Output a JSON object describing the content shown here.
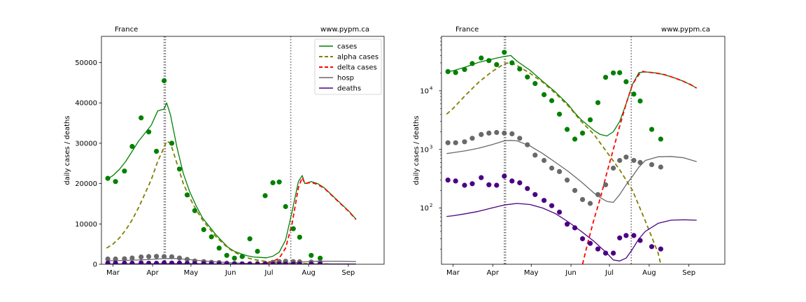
{
  "chart_data": [
    {
      "type": "line",
      "scale": "linear",
      "region": "France",
      "website": "www.pypm.ca",
      "ylabel": "daily cases / deaths",
      "ylim": [
        0,
        56500
      ],
      "xlim": [
        -9,
        212
      ],
      "y_ticks": [
        0,
        10000,
        20000,
        30000,
        40000,
        50000
      ],
      "y_tick_labels": [
        "0",
        "10000",
        "20000",
        "30000",
        "40000",
        "50000"
      ],
      "x_ticks": [
        {
          "day": 0,
          "label": "Mar"
        },
        {
          "day": 31,
          "label": "Apr"
        },
        {
          "day": 61,
          "label": "May"
        },
        {
          "day": 92,
          "label": "Jun"
        },
        {
          "day": 122,
          "label": "Jul"
        },
        {
          "day": 153,
          "label": "Aug"
        },
        {
          "day": 184,
          "label": "Sep"
        }
      ],
      "vlines": [
        40,
        41,
        139
      ],
      "legend": {
        "placement": "top-right",
        "entries": [
          {
            "label": "cases",
            "color": "#008000",
            "style": "solid"
          },
          {
            "label": "alpha cases",
            "color": "#808000",
            "style": "dashed"
          },
          {
            "label": "delta cases",
            "color": "#ff0000",
            "style": "dashed"
          },
          {
            "label": "hosp",
            "color": "#696969",
            "style": "solid"
          },
          {
            "label": "deaths",
            "color": "#4b0082",
            "style": "solid"
          }
        ]
      },
      "series": [
        {
          "key": "cases",
          "color": "#008000",
          "style": "solid",
          "x": [
            -5,
            0,
            5,
            10,
            15,
            20,
            25,
            30,
            35,
            40,
            42,
            45,
            50,
            55,
            60,
            65,
            70,
            75,
            80,
            85,
            90,
            95,
            100,
            105,
            110,
            115,
            120,
            125,
            130,
            135,
            140,
            145,
            148,
            150,
            155,
            160,
            165,
            170,
            175,
            180,
            185,
            190
          ],
          "y": [
            21000,
            22000,
            23500,
            25500,
            28000,
            30500,
            32500,
            34500,
            38000,
            38500,
            40000,
            37000,
            29000,
            22500,
            18000,
            14500,
            11500,
            9500,
            7500,
            5800,
            4200,
            3200,
            2600,
            2100,
            1800,
            1700,
            1600,
            2000,
            3000,
            6000,
            13000,
            20500,
            22000,
            20000,
            20500,
            20000,
            19000,
            17500,
            16000,
            14500,
            13000,
            11200
          ]
        },
        {
          "key": "alpha cases",
          "color": "#808000",
          "style": "dashed",
          "x": [
            -5,
            0,
            5,
            10,
            15,
            20,
            25,
            30,
            35,
            40,
            42,
            45,
            50,
            55,
            60,
            65,
            70,
            75,
            80,
            85,
            90,
            95,
            100,
            105,
            110,
            115,
            120,
            125,
            130,
            135,
            140,
            150,
            160,
            170
          ],
          "y": [
            4000,
            5000,
            6500,
            8500,
            11000,
            14000,
            17500,
            21000,
            25500,
            29000,
            30500,
            30000,
            25000,
            20000,
            16500,
            13500,
            11000,
            9000,
            7000,
            5500,
            4000,
            3000,
            2200,
            1600,
            1200,
            900,
            700,
            550,
            450,
            350,
            280,
            150,
            90,
            50
          ]
        },
        {
          "key": "delta cases",
          "color": "#ff0000",
          "style": "dashed",
          "x": [
            110,
            115,
            120,
            125,
            130,
            135,
            140,
            145,
            148,
            150,
            155,
            160,
            165,
            170,
            175,
            180,
            185,
            190
          ],
          "y": [
            0,
            100,
            300,
            700,
            1500,
            4000,
            10000,
            19000,
            21500,
            20000,
            20300,
            19800,
            18900,
            17400,
            15900,
            14400,
            12900,
            11100
          ]
        },
        {
          "key": "hosp",
          "color": "#696969",
          "style": "solid",
          "x": [
            -5,
            0,
            10,
            20,
            30,
            40,
            45,
            50,
            60,
            70,
            80,
            90,
            100,
            110,
            120,
            130,
            140,
            150,
            160,
            170,
            180,
            190
          ],
          "y": [
            850,
            880,
            950,
            1050,
            1200,
            1400,
            1430,
            1400,
            1150,
            850,
            600,
            420,
            280,
            180,
            130,
            170,
            350,
            600,
            750,
            760,
            720,
            650
          ]
        },
        {
          "key": "deaths",
          "color": "#4b0082",
          "style": "solid",
          "x": [
            -5,
            0,
            10,
            20,
            30,
            40,
            50,
            60,
            70,
            80,
            90,
            100,
            110,
            120,
            130,
            135,
            140,
            150,
            160,
            170,
            180,
            190
          ],
          "y": [
            72,
            74,
            80,
            88,
            100,
            113,
            120,
            115,
            100,
            80,
            58,
            40,
            27,
            18,
            13,
            14,
            20,
            40,
            58,
            65,
            64,
            62
          ]
        }
      ],
      "points": [
        {
          "key": "cases",
          "color": "#008000",
          "x": [
            -4,
            2,
            9,
            15,
            22,
            28,
            34,
            40,
            46,
            52,
            58,
            64,
            71,
            77,
            83,
            89,
            95,
            101,
            107,
            113,
            119,
            125,
            130,
            135,
            141,
            146,
            155,
            162
          ],
          "y": [
            21300,
            20500,
            23100,
            29200,
            36300,
            32800,
            28000,
            45500,
            30000,
            23600,
            17200,
            13300,
            8600,
            6800,
            4000,
            2200,
            1500,
            1900,
            6300,
            3200,
            17000,
            20200,
            20400,
            14300,
            8800,
            6700,
            2200,
            1500
          ]
        },
        {
          "key": "hosp",
          "color": "#696969",
          "x": [
            -4,
            2,
            9,
            15,
            22,
            28,
            34,
            40,
            46,
            52,
            58,
            64,
            71,
            77,
            83,
            89,
            95,
            101,
            107,
            113,
            119,
            125,
            130,
            135,
            141,
            146,
            155,
            162
          ],
          "y": [
            1300,
            1300,
            1350,
            1550,
            1800,
            1900,
            1950,
            1900,
            1850,
            1550,
            1200,
            800,
            650,
            480,
            420,
            300,
            200,
            140,
            120,
            170,
            250,
            480,
            650,
            740,
            650,
            600,
            550,
            500
          ]
        },
        {
          "key": "deaths",
          "color": "#4b0082",
          "x": [
            -4,
            2,
            9,
            15,
            22,
            28,
            34,
            40,
            46,
            52,
            58,
            64,
            71,
            77,
            83,
            89,
            95,
            101,
            107,
            113,
            119,
            125,
            130,
            135,
            141,
            146,
            155,
            162
          ],
          "y": [
            300,
            290,
            245,
            260,
            330,
            250,
            245,
            350,
            290,
            270,
            215,
            170,
            135,
            110,
            85,
            53,
            46,
            30,
            25,
            20,
            17,
            17,
            31,
            34,
            34,
            28,
            22,
            20
          ]
        }
      ]
    },
    {
      "type": "line",
      "scale": "log",
      "region": "France",
      "website": "www.pypm.ca",
      "ylabel": "daily cases / deaths",
      "ylim": [
        11,
        85000
      ],
      "xlim": [
        -9,
        212
      ],
      "y_ticks": [
        100,
        1000,
        10000
      ],
      "y_tick_labels": [
        {
          "base": "10",
          "exp": "2"
        },
        {
          "base": "10",
          "exp": "3"
        },
        {
          "base": "10",
          "exp": "4"
        }
      ],
      "x_ticks": [
        {
          "day": 0,
          "label": "Mar"
        },
        {
          "day": 31,
          "label": "Apr"
        },
        {
          "day": 61,
          "label": "May"
        },
        {
          "day": 92,
          "label": "Jun"
        },
        {
          "day": 122,
          "label": "Jul"
        },
        {
          "day": 153,
          "label": "Aug"
        },
        {
          "day": 184,
          "label": "Sep"
        }
      ],
      "vlines": [
        40,
        41,
        139
      ],
      "series": [
        {
          "key": "cases",
          "color": "#008000",
          "style": "solid",
          "x": [
            -5,
            0,
            10,
            20,
            30,
            40,
            45,
            50,
            60,
            70,
            80,
            90,
            95,
            100,
            105,
            110,
            115,
            120,
            125,
            130,
            135,
            140,
            145,
            150,
            160,
            170,
            180,
            190
          ],
          "y": [
            21000,
            22000,
            25500,
            30500,
            34500,
            38500,
            40000,
            32000,
            22500,
            14500,
            9500,
            5800,
            4200,
            3200,
            2600,
            2100,
            1800,
            1700,
            2000,
            3000,
            6000,
            13000,
            20500,
            21000,
            20000,
            17500,
            14500,
            11200
          ]
        },
        {
          "key": "alpha cases",
          "color": "#808000",
          "style": "dashed",
          "x": [
            -5,
            0,
            10,
            20,
            30,
            40,
            45,
            50,
            60,
            70,
            80,
            90,
            100,
            110,
            120,
            130,
            140,
            150,
            160,
            162
          ],
          "y": [
            4000,
            5000,
            8500,
            14000,
            21000,
            29000,
            30500,
            27000,
            20000,
            14000,
            9000,
            5500,
            3000,
            1800,
            900,
            450,
            200,
            60,
            17,
            11
          ]
        },
        {
          "key": "delta cases",
          "color": "#ff0000",
          "style": "dashed",
          "x": [
            101,
            105,
            110,
            115,
            120,
            125,
            130,
            135,
            140,
            145,
            148,
            150,
            155,
            160,
            165,
            170,
            175,
            180,
            185,
            190
          ],
          "y": [
            11,
            25,
            65,
            150,
            400,
            1000,
            2500,
            6000,
            13000,
            19000,
            21500,
            21000,
            20500,
            19800,
            18900,
            17400,
            15900,
            14400,
            12900,
            11100
          ]
        },
        {
          "key": "hosp",
          "color": "#696969",
          "style": "solid",
          "x": [
            -5,
            0,
            10,
            20,
            30,
            40,
            45,
            50,
            60,
            70,
            80,
            90,
            100,
            110,
            115,
            120,
            125,
            130,
            135,
            140,
            145,
            150,
            160,
            170,
            180,
            190
          ],
          "y": [
            850,
            880,
            950,
            1050,
            1200,
            1400,
            1430,
            1400,
            1150,
            850,
            600,
            420,
            280,
            180,
            150,
            130,
            125,
            170,
            250,
            350,
            500,
            650,
            750,
            760,
            720,
            620
          ]
        },
        {
          "key": "deaths",
          "color": "#4b0082",
          "style": "solid",
          "x": [
            -5,
            0,
            10,
            20,
            30,
            40,
            50,
            60,
            70,
            80,
            90,
            100,
            110,
            120,
            125,
            130,
            135,
            140,
            145,
            150,
            160,
            170,
            180,
            190
          ],
          "y": [
            72,
            74,
            80,
            88,
            100,
            113,
            120,
            115,
            100,
            80,
            58,
            40,
            27,
            17,
            13,
            12.5,
            14,
            20,
            30,
            40,
            55,
            62,
            63,
            62
          ]
        }
      ],
      "points": [
        {
          "key": "cases",
          "color": "#008000",
          "x": [
            -4,
            2,
            9,
            15,
            22,
            28,
            34,
            40,
            46,
            52,
            58,
            64,
            71,
            77,
            83,
            89,
            95,
            101,
            107,
            113,
            119,
            125,
            130,
            135,
            141,
            146,
            155,
            162
          ],
          "y": [
            21300,
            20500,
            23100,
            29200,
            36300,
            32800,
            28000,
            45500,
            30000,
            23600,
            17200,
            13300,
            8600,
            6800,
            4000,
            2200,
            1500,
            1900,
            3200,
            6300,
            17000,
            20200,
            20400,
            14300,
            8800,
            6700,
            2200,
            1500
          ]
        },
        {
          "key": "hosp",
          "color": "#696969",
          "x": [
            -4,
            2,
            9,
            15,
            22,
            28,
            34,
            40,
            46,
            52,
            58,
            64,
            71,
            77,
            83,
            89,
            95,
            101,
            107,
            113,
            119,
            125,
            130,
            135,
            141,
            146,
            155,
            162
          ],
          "y": [
            1300,
            1300,
            1350,
            1550,
            1800,
            1900,
            1950,
            1900,
            1850,
            1550,
            1200,
            800,
            650,
            480,
            420,
            300,
            200,
            140,
            120,
            170,
            250,
            480,
            650,
            740,
            650,
            600,
            550,
            500
          ]
        },
        {
          "key": "deaths",
          "color": "#4b0082",
          "x": [
            -4,
            2,
            9,
            15,
            22,
            28,
            34,
            40,
            46,
            52,
            58,
            64,
            71,
            77,
            83,
            89,
            95,
            101,
            107,
            113,
            119,
            125,
            130,
            135,
            141,
            146,
            155,
            162
          ],
          "y": [
            300,
            290,
            245,
            260,
            330,
            250,
            245,
            350,
            290,
            270,
            215,
            170,
            135,
            110,
            85,
            53,
            46,
            30,
            25,
            20,
            17,
            17,
            31,
            34,
            34,
            28,
            22,
            20
          ]
        }
      ]
    }
  ]
}
